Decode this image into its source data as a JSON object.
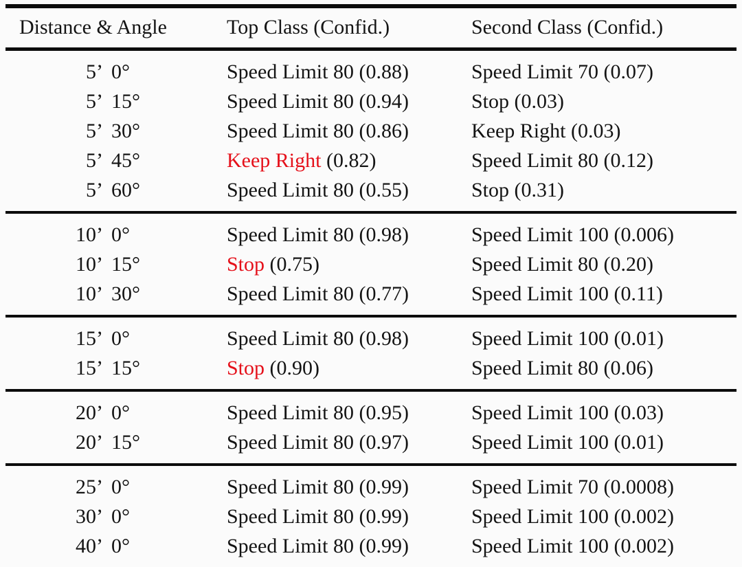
{
  "table": {
    "headers": {
      "distance_angle": "Distance & Angle",
      "top_class": "Top Class (Confid.)",
      "second_class": "Second Class (Confid.)"
    },
    "colors": {
      "highlight_red": "#e5101a",
      "rule_black": "#0c0c0c",
      "text": "#141414"
    },
    "groups": [
      {
        "rows": [
          {
            "distance": "5’",
            "angle": "0°",
            "top_class": "Speed Limit 80",
            "top_conf": "(0.88)",
            "top_red": false,
            "second_class": "Speed Limit 70",
            "second_conf": "(0.07)"
          },
          {
            "distance": "5’",
            "angle": "15°",
            "top_class": "Speed Limit 80",
            "top_conf": "(0.94)",
            "top_red": false,
            "second_class": "Stop",
            "second_conf": "(0.03)"
          },
          {
            "distance": "5’",
            "angle": "30°",
            "top_class": "Speed Limit 80",
            "top_conf": "(0.86)",
            "top_red": false,
            "second_class": "Keep Right",
            "second_conf": "(0.03)"
          },
          {
            "distance": "5’",
            "angle": "45°",
            "top_class": "Keep Right",
            "top_conf": "(0.82)",
            "top_red": true,
            "second_class": "Speed Limit 80",
            "second_conf": "(0.12)"
          },
          {
            "distance": "5’",
            "angle": "60°",
            "top_class": "Speed Limit 80",
            "top_conf": "(0.55)",
            "top_red": false,
            "second_class": "Stop",
            "second_conf": "(0.31)"
          }
        ]
      },
      {
        "rows": [
          {
            "distance": "10’",
            "angle": "0°",
            "top_class": "Speed Limit 80",
            "top_conf": "(0.98)",
            "top_red": false,
            "second_class": "Speed Limit 100",
            "second_conf": "(0.006)"
          },
          {
            "distance": "10’",
            "angle": "15°",
            "top_class": "Stop",
            "top_conf": "(0.75)",
            "top_red": true,
            "second_class": "Speed Limit 80",
            "second_conf": "(0.20)"
          },
          {
            "distance": "10’",
            "angle": "30°",
            "top_class": "Speed Limit 80",
            "top_conf": "(0.77)",
            "top_red": false,
            "second_class": "Speed Limit 100",
            "second_conf": "(0.11)"
          }
        ]
      },
      {
        "rows": [
          {
            "distance": "15’",
            "angle": "0°",
            "top_class": "Speed Limit 80",
            "top_conf": "(0.98)",
            "top_red": false,
            "second_class": "Speed Limit 100",
            "second_conf": "(0.01)"
          },
          {
            "distance": "15’",
            "angle": "15°",
            "top_class": "Stop",
            "top_conf": "(0.90)",
            "top_red": true,
            "second_class": "Speed Limit 80",
            "second_conf": "(0.06)"
          }
        ]
      },
      {
        "rows": [
          {
            "distance": "20’",
            "angle": "0°",
            "top_class": "Speed Limit 80",
            "top_conf": "(0.95)",
            "top_red": false,
            "second_class": "Speed Limit 100",
            "second_conf": "(0.03)"
          },
          {
            "distance": "20’",
            "angle": "15°",
            "top_class": "Speed Limit 80",
            "top_conf": "(0.97)",
            "top_red": false,
            "second_class": "Speed Limit 100",
            "second_conf": "(0.01)"
          }
        ]
      },
      {
        "rows": [
          {
            "distance": "25’",
            "angle": "0°",
            "top_class": "Speed Limit 80",
            "top_conf": "(0.99)",
            "top_red": false,
            "second_class": "Speed Limit 70",
            "second_conf": "(0.0008)"
          },
          {
            "distance": "30’",
            "angle": "0°",
            "top_class": "Speed Limit 80",
            "top_conf": "(0.99)",
            "top_red": false,
            "second_class": "Speed Limit 100",
            "second_conf": "(0.002)"
          },
          {
            "distance": "40’",
            "angle": "0°",
            "top_class": "Speed Limit 80",
            "top_conf": "(0.99)",
            "top_red": false,
            "second_class": "Speed Limit 100",
            "second_conf": "(0.002)"
          }
        ]
      }
    ]
  }
}
